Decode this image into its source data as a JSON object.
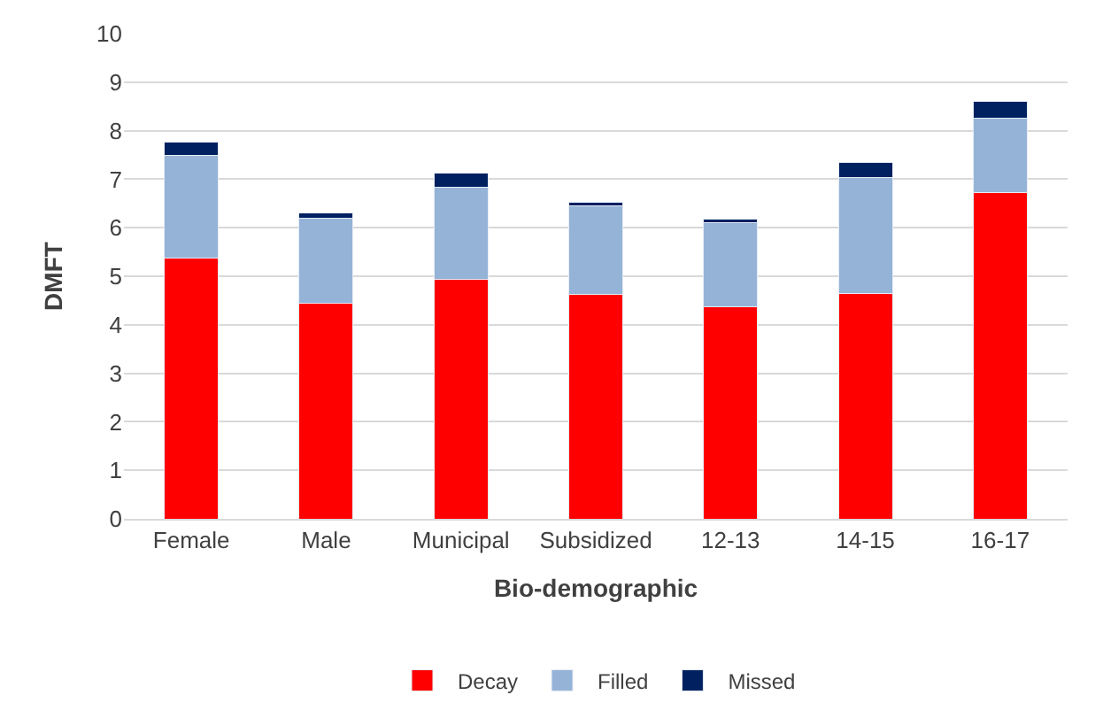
{
  "chart_data": {
    "type": "bar",
    "stacked": true,
    "xlabel": "Bio-demographic",
    "ylabel": "DMFT",
    "categories": [
      "Female",
      "Male",
      "Municipal",
      "Subsidized",
      "12-13",
      "14-15",
      "16-17"
    ],
    "series": [
      {
        "name": "Decay",
        "color": "#ff0000",
        "values": [
          5.37,
          4.45,
          4.93,
          4.62,
          4.37,
          4.65,
          6.73
        ]
      },
      {
        "name": "Filled",
        "color": "#95b3d7",
        "values": [
          2.13,
          1.75,
          1.9,
          1.83,
          1.73,
          2.38,
          1.53
        ]
      },
      {
        "name": "Missed",
        "color": "#002060",
        "values": [
          0.27,
          0.1,
          0.29,
          0.07,
          0.08,
          0.32,
          0.34
        ]
      }
    ],
    "ylim": [
      0,
      10
    ],
    "yticks": [
      0,
      1,
      2,
      3,
      4,
      5,
      6,
      7,
      8,
      9,
      10
    ],
    "grid": "y",
    "legend": "bottom"
  }
}
